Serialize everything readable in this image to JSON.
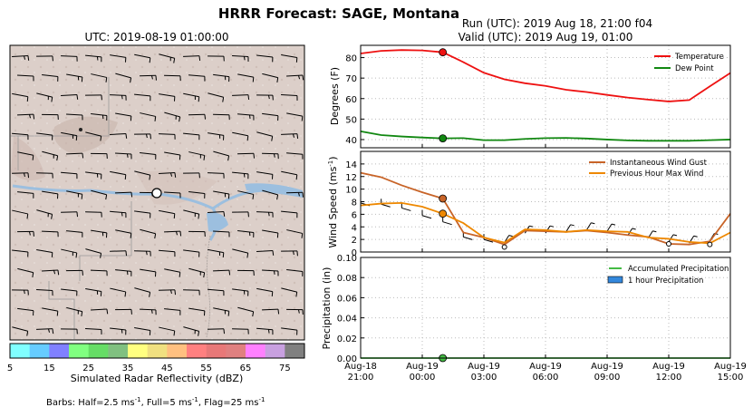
{
  "figure": {
    "title": "HRRR Forecast: SAGE, Montana",
    "barbs_caption_prefix": "Barbs: Half=2.5 ms",
    "barbs_caption_mid1": ", Full=5 ms",
    "barbs_caption_mid2": ", Flag=25 ms",
    "barbs_sup": "-1"
  },
  "map": {
    "title": "UTC: 2019-08-19 01:00:00",
    "colorbar_label": "Simulated Radar Reflectivity (dBZ)",
    "colorbar_ticks": [
      "5",
      "15",
      "25",
      "35",
      "45",
      "55",
      "65",
      "75"
    ],
    "colorbar_colors": [
      "#80ffff",
      "#66ccff",
      "#8080ff",
      "#80ff80",
      "#66dd66",
      "#80c080",
      "#ffff80",
      "#f0e080",
      "#ffc080",
      "#ff8080",
      "#e87878",
      "#e08080",
      "#ff80ff",
      "#c8a0e0",
      "#808080"
    ]
  },
  "chart_data": [
    {
      "type": "line",
      "title": "Run (UTC): 2019 Aug 18, 21:00 f04",
      "subtitle": "Valid (UTC): 2019 Aug 19, 01:00",
      "ylabel": "Degrees (F)",
      "ylim": [
        36,
        86
      ],
      "yticks": [
        "40",
        "50",
        "60",
        "70",
        "80"
      ],
      "grid": true,
      "legend_position": "top-right",
      "x_hours": [
        0,
        1,
        2,
        3,
        4,
        5,
        6,
        7,
        8,
        9,
        10,
        11,
        12,
        13,
        14,
        15,
        16,
        17,
        18
      ],
      "series": [
        {
          "name": "Temperature",
          "color": "#ee1111",
          "values": [
            82,
            83.3,
            83.7,
            83.5,
            82.6,
            77.8,
            72.6,
            69.4,
            67.5,
            66.2,
            64.3,
            63.2,
            61.8,
            60.5,
            59.5,
            58.6,
            59.3,
            66,
            72.5
          ]
        },
        {
          "name": "Dew Point",
          "color": "#118811",
          "values": [
            44,
            42.2,
            41.5,
            41,
            40.6,
            40.7,
            39.7,
            39.7,
            40.3,
            40.7,
            40.8,
            40.5,
            40,
            39.6,
            39.4,
            39.4,
            39.4,
            39.7,
            40
          ]
        }
      ],
      "highlight": {
        "x": 4,
        "values": [
          82.6,
          40.6
        ]
      }
    },
    {
      "type": "line",
      "ylabel": "Wind Speed (ms",
      "ylabel_sup": "-1",
      "ylabel_end": ")",
      "ylim": [
        0,
        16
      ],
      "yticks": [
        "0",
        "2",
        "4",
        "6",
        "8",
        "10",
        "12",
        "14"
      ],
      "grid": true,
      "legend_position": "top-right",
      "x_hours": [
        0,
        1,
        2,
        3,
        4,
        5,
        6,
        7,
        8,
        9,
        10,
        11,
        12,
        13,
        14,
        15,
        16,
        17,
        18
      ],
      "series": [
        {
          "name": "Instantaneous Wind Gust",
          "color": "#c86428",
          "values": [
            12.6,
            11.9,
            10.6,
            9.5,
            8.5,
            3.1,
            2.3,
            1.2,
            3.4,
            3.3,
            3.2,
            3.4,
            3.1,
            2.7,
            2.4,
            1.3,
            1.2,
            1.7,
            6.1
          ]
        },
        {
          "name": "Previous Hour Max Wind",
          "color": "#ee8800",
          "values": [
            7.4,
            7.7,
            7.8,
            7.2,
            6.1,
            4.6,
            2.3,
            1.5,
            3.6,
            3.5,
            3.2,
            3.5,
            3.3,
            3.2,
            2.3,
            2.1,
            1.6,
            1.4,
            3.1
          ]
        }
      ],
      "sustained_points": {
        "x": [
          4,
          7,
          15,
          17
        ],
        "values": [
          6.1,
          0.8,
          1.3,
          1.2
        ]
      },
      "highlight": {
        "x": 4,
        "values": [
          8.5,
          6.1
        ]
      }
    },
    {
      "type": "line",
      "ylabel": "Precipitation (in)",
      "ylim": [
        0,
        0.1
      ],
      "yticks": [
        "0.00",
        "0.02",
        "0.04",
        "0.06",
        "0.08",
        "0.10"
      ],
      "grid": true,
      "legend_position": "top-right",
      "x_hours": [
        0,
        18
      ],
      "series": [
        {
          "name": "Accumulated Precipitation",
          "color": "#44bb44",
          "values": [
            0,
            0
          ]
        },
        {
          "name": "1 hour Precipitation",
          "color": "#3388dd",
          "values": []
        }
      ],
      "highlight": {
        "x": 4,
        "values": [
          0
        ]
      },
      "x_tick_labels": [
        [
          "Aug-18",
          "21:00"
        ],
        [
          "Aug-19",
          "00:00"
        ],
        [
          "Aug-19",
          "03:00"
        ],
        [
          "Aug-19",
          "06:00"
        ],
        [
          "Aug-19",
          "09:00"
        ],
        [
          "Aug-19",
          "12:00"
        ],
        [
          "Aug-19",
          "15:00"
        ]
      ]
    }
  ]
}
